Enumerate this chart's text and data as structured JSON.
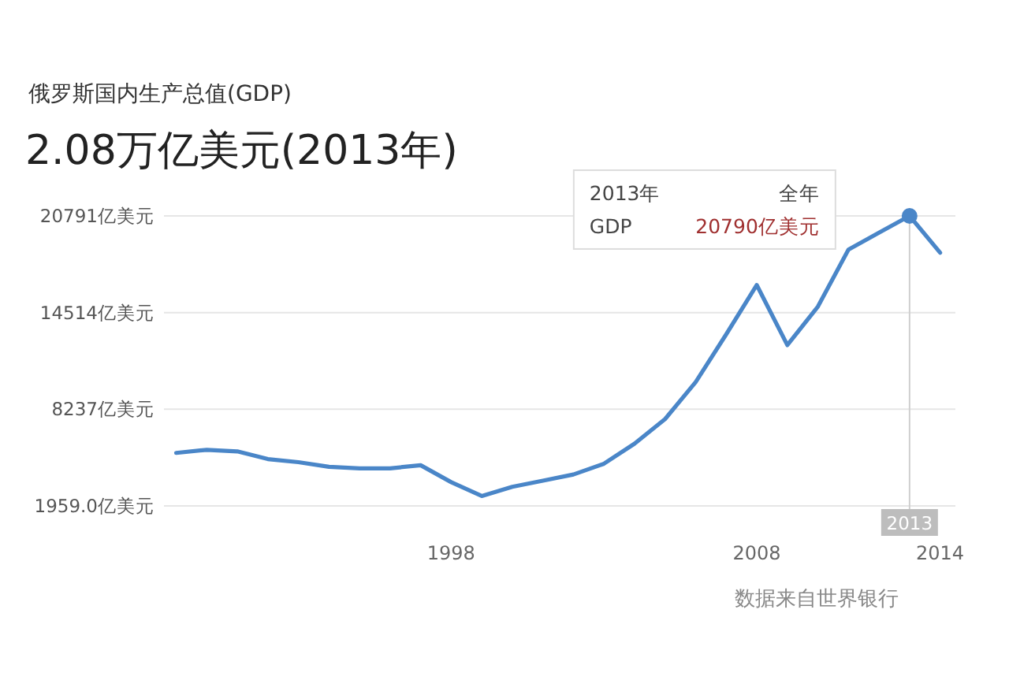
{
  "chart_data": {
    "type": "line",
    "title": "俄罗斯国内生产总值(GDP)",
    "subtitle": "2.08万亿美元(2013年)",
    "x": [
      1989,
      1990,
      1991,
      1992,
      1993,
      1994,
      1995,
      1996,
      1997,
      1998,
      1999,
      2000,
      2001,
      2002,
      2003,
      2004,
      2005,
      2006,
      2007,
      2008,
      2009,
      2010,
      2011,
      2012,
      2013,
      2014
    ],
    "series": [
      {
        "color": "#4a86c8",
        "values": [
          5400,
          5600,
          5500,
          5000,
          4800,
          4500,
          4400,
          4400,
          4600,
          3500,
          2600,
          3200,
          3600,
          4000,
          4700,
          6000,
          7600,
          10000,
          13100,
          16300,
          12400,
          14900,
          18600,
          19700,
          20790,
          18400
        ]
      }
    ],
    "xlim": [
      1988.6,
      2014.5
    ],
    "xticks": [
      1998,
      2008,
      2014
    ],
    "ylim": [
      1959,
      21300
    ],
    "yticks": [
      {
        "value": 1959,
        "label": "1959.0亿美元"
      },
      {
        "value": 8237,
        "label": "8237亿美元"
      },
      {
        "value": 14514,
        "label": "14514亿美元"
      },
      {
        "value": 20791,
        "label": "20791亿美元"
      }
    ],
    "grid": "y",
    "marker": "none",
    "line_style": "solid",
    "ref_lines": [
      {
        "axis": "x",
        "value": 2013,
        "label": "2013"
      }
    ],
    "annotations": [
      "数据来自世界银行",
      "2013年",
      "全年",
      "GDP",
      "20790亿美元"
    ]
  }
}
